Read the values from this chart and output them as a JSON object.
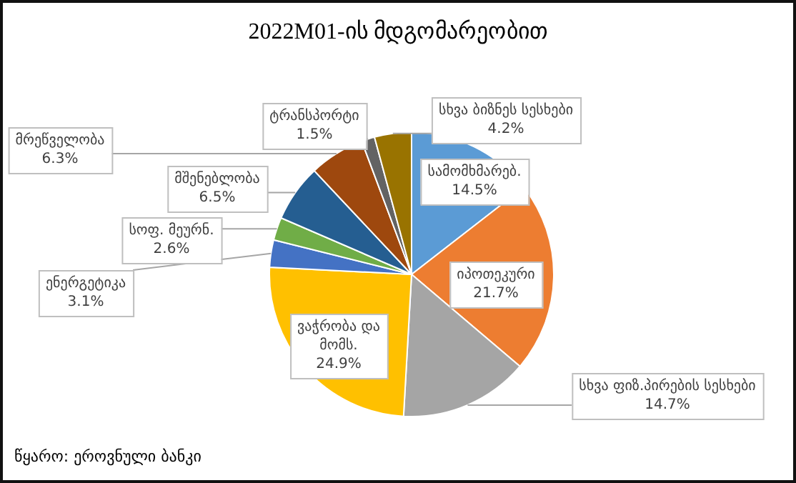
{
  "chart_data": {
    "type": "pie",
    "title": "2022M01-ის მდგომარეობით",
    "categories": [
      "სამომხმარებ.",
      "იპოთეკური",
      "სხვა ფიზ.პირების სესხები",
      "ვაჭრობა და მომს.",
      "ენერგეტიკა",
      "სოფ. მეურნ.",
      "მშენებლობა",
      "მრეწველობა",
      "ტრანსპორტი",
      "სხვა ბიზნეს სესხები"
    ],
    "values": [
      14.5,
      21.7,
      14.7,
      24.9,
      3.1,
      2.6,
      6.5,
      6.3,
      1.5,
      4.2
    ],
    "colors": [
      "#5b9bd5",
      "#ed7d31",
      "#a5a5a5",
      "#ffc000",
      "#4472c4",
      "#70ad47",
      "#255e91",
      "#9e480e",
      "#636363",
      "#997300"
    ],
    "value_labels": [
      "14.5%",
      "21.7%",
      "14.7%",
      "24.9%",
      "3.1%",
      "2.6%",
      "6.5%",
      "6.3%",
      "1.5%",
      "4.2%"
    ],
    "legend": false,
    "annotations": [
      "წყარო: ეროვნული ბანკი"
    ]
  }
}
